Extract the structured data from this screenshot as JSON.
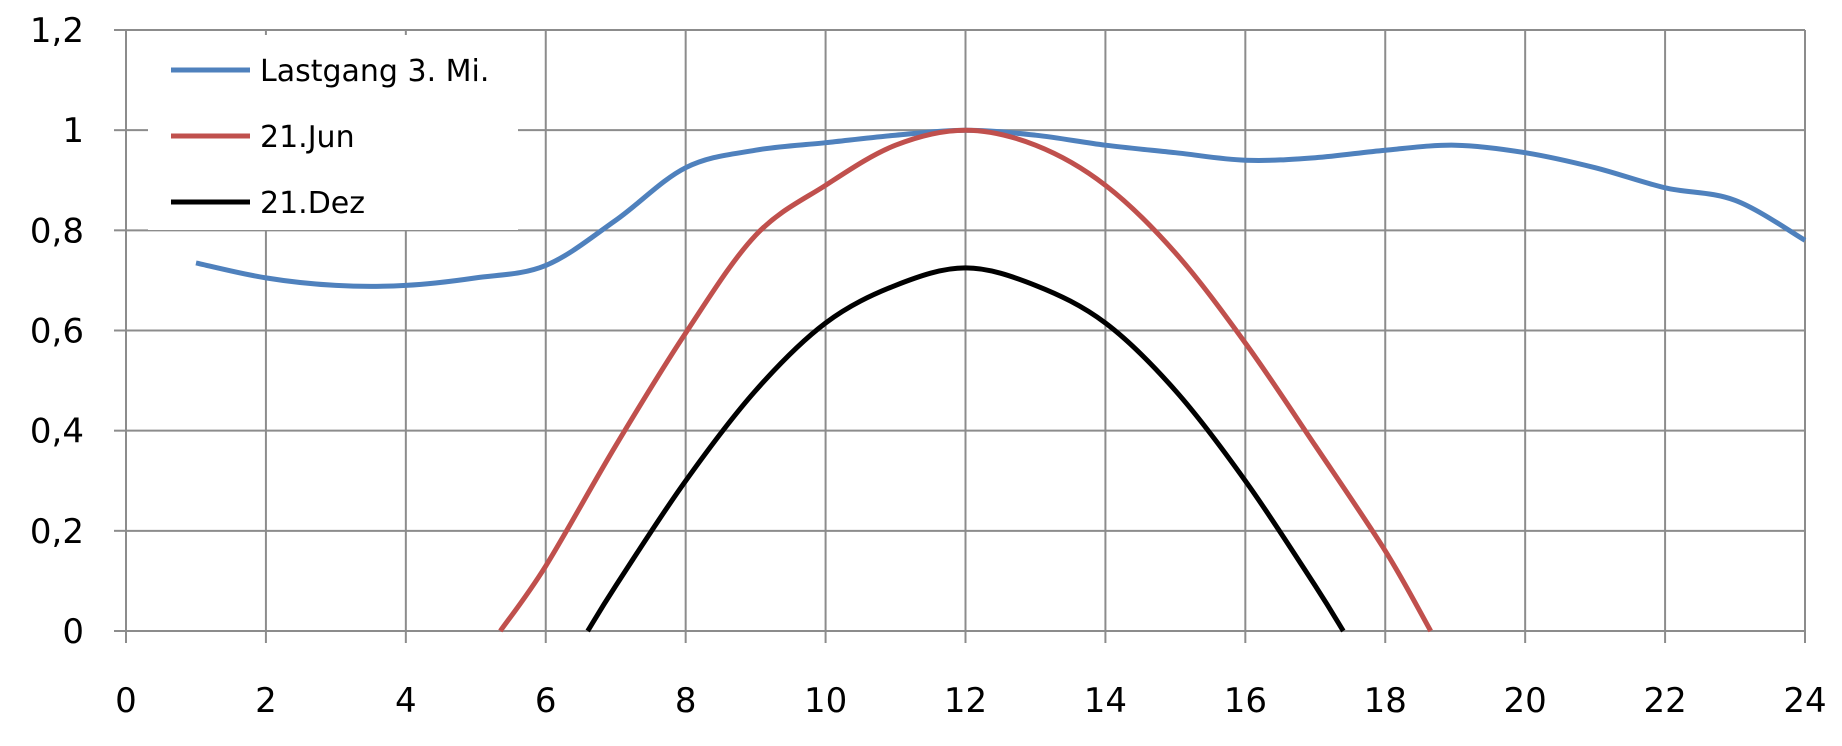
{
  "chart_data": {
    "type": "line",
    "xlim": [
      0,
      24
    ],
    "ylim": [
      0,
      1.2
    ],
    "x_ticks": [
      0,
      2,
      4,
      6,
      8,
      10,
      12,
      14,
      16,
      18,
      20,
      22,
      24
    ],
    "x_tick_labels": [
      "0",
      "2",
      "4",
      "6",
      "8",
      "10",
      "12",
      "14",
      "16",
      "18",
      "20",
      "22",
      "24"
    ],
    "y_ticks": [
      0,
      0.2,
      0.4,
      0.6,
      0.8,
      1.0,
      1.2
    ],
    "y_tick_labels": [
      "0",
      "0,2",
      "0,4",
      "0,6",
      "0,8",
      "1",
      "1,2"
    ],
    "grid": true,
    "legend_position": "top-left",
    "series": [
      {
        "name": "Lastgang 3. Mi.",
        "color": "#4f81bd",
        "points": [
          [
            1,
            0.735
          ],
          [
            2,
            0.705
          ],
          [
            3,
            0.69
          ],
          [
            4,
            0.69
          ],
          [
            5,
            0.705
          ],
          [
            6,
            0.73
          ],
          [
            7,
            0.82
          ],
          [
            8,
            0.925
          ],
          [
            9,
            0.96
          ],
          [
            10,
            0.975
          ],
          [
            11,
            0.99
          ],
          [
            12,
            1.0
          ],
          [
            13,
            0.99
          ],
          [
            14,
            0.97
          ],
          [
            15,
            0.955
          ],
          [
            16,
            0.94
          ],
          [
            17,
            0.945
          ],
          [
            18,
            0.96
          ],
          [
            19,
            0.97
          ],
          [
            20,
            0.955
          ],
          [
            21,
            0.925
          ],
          [
            22,
            0.885
          ],
          [
            23,
            0.86
          ],
          [
            24,
            0.78
          ]
        ]
      },
      {
        "name": "21.Jun",
        "color": "#c0504d",
        "points": [
          [
            5.35,
            0.0
          ],
          [
            6,
            0.13
          ],
          [
            7,
            0.37
          ],
          [
            8,
            0.595
          ],
          [
            9,
            0.79
          ],
          [
            10,
            0.89
          ],
          [
            11,
            0.97
          ],
          [
            12,
            1.0
          ],
          [
            13,
            0.97
          ],
          [
            14,
            0.89
          ],
          [
            15,
            0.755
          ],
          [
            16,
            0.575
          ],
          [
            17,
            0.37
          ],
          [
            18,
            0.16
          ],
          [
            18.65,
            0.0
          ]
        ]
      },
      {
        "name": "21.Dez",
        "color": "#000000",
        "points": [
          [
            6.6,
            0.0
          ],
          [
            7,
            0.09
          ],
          [
            8,
            0.3
          ],
          [
            9,
            0.48
          ],
          [
            10,
            0.615
          ],
          [
            11,
            0.69
          ],
          [
            12,
            0.725
          ],
          [
            13,
            0.69
          ],
          [
            14,
            0.615
          ],
          [
            15,
            0.48
          ],
          [
            16,
            0.3
          ],
          [
            17,
            0.09
          ],
          [
            17.4,
            0.0
          ]
        ]
      }
    ]
  }
}
